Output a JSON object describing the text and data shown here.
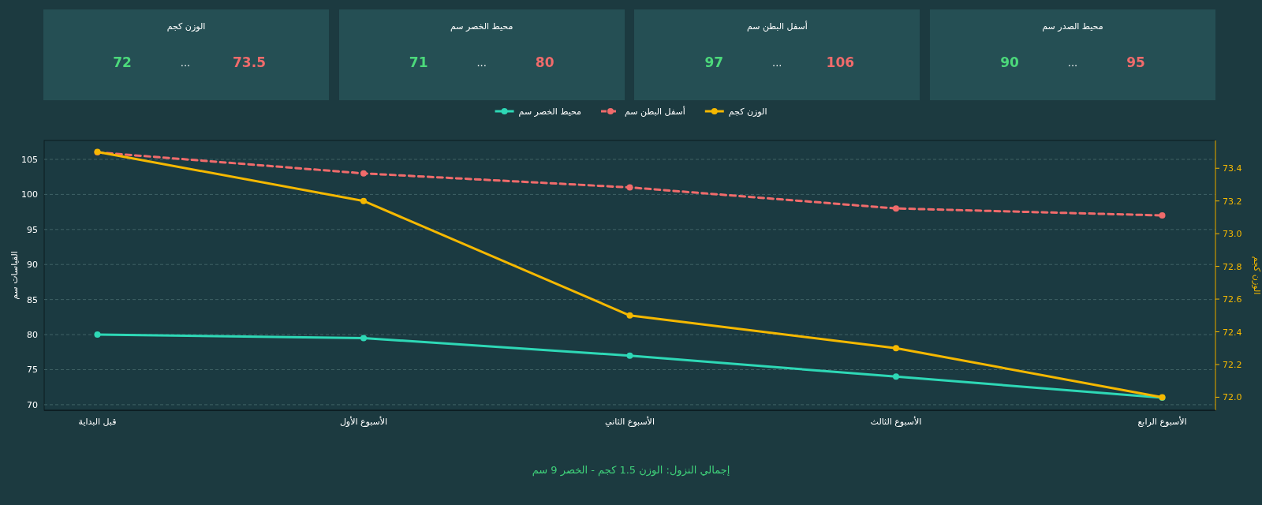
{
  "chart_data": [
    {
      "type": "other",
      "title": "محيط الصدر سم",
      "colors": [
        "#4cd97b",
        "#ffffff",
        "#f06b6b"
      ],
      "annotations": [
        "90",
        "...",
        "95"
      ]
    },
    {
      "type": "other",
      "title": "أسفل البطن سم",
      "colors": [
        "#4cd97b",
        "#ffffff",
        "#f06b6b"
      ],
      "annotations": [
        "97",
        "...",
        "106"
      ]
    },
    {
      "type": "other",
      "title": "محيط الخصر سم",
      "colors": [
        "#4cd97b",
        "#ffffff",
        "#f06b6b"
      ],
      "annotations": [
        "71",
        "...",
        "80"
      ]
    },
    {
      "type": "other",
      "title": "الوزن كجم",
      "colors": [
        "#4cd97b",
        "#ffffff",
        "#f06b6b"
      ],
      "annotations": [
        "72",
        "...",
        "73.5"
      ]
    },
    {
      "type": "line",
      "categories": [
        "قبل البداية",
        "الأسبوع الأول",
        "الأسبوع الثاني",
        "الأسبوع الثالث",
        "الأسبوع الرابع"
      ],
      "ylabel": "القياسات سم",
      "y2label": "الوزن كجم",
      "ylim": [
        69.2,
        107.7
      ],
      "yticks": [
        70,
        75,
        80,
        85,
        90,
        95,
        100,
        105
      ],
      "y2lim": [
        71.92,
        73.57
      ],
      "y2ticks": [
        {
          "value": 72,
          "label": "72.0"
        },
        {
          "value": 72.2,
          "label": "72.2"
        },
        {
          "value": 72.4,
          "label": "72.4"
        },
        {
          "value": 72.6,
          "label": "72.6"
        },
        {
          "value": 72.8,
          "label": "72.8"
        },
        {
          "value": 73,
          "label": "73.0"
        },
        {
          "value": 73.2,
          "label": "73.2"
        },
        {
          "value": 73.4,
          "label": "73.4"
        }
      ],
      "series": [
        {
          "name": "محيط الخصر سم",
          "color": "#2ed8b6",
          "values": [
            80,
            79.5,
            77,
            74,
            71
          ]
        },
        {
          "name": "أسفل البطن سم",
          "color": "#f06b6b",
          "values": [
            106,
            103,
            101,
            98,
            97
          ],
          "line_style": "dashed"
        },
        {
          "name": "الوزن كجم",
          "color": "#f5b800",
          "values": [
            73.5,
            73.2,
            72.5,
            72.3,
            72.0
          ],
          "axis": "y2"
        }
      ],
      "grid": "y",
      "legend": "top",
      "marker": "circle",
      "annotations": [
        "إجمالي النزول: الوزن 1.5 كجم - الخصر 9 سم"
      ]
    }
  ]
}
